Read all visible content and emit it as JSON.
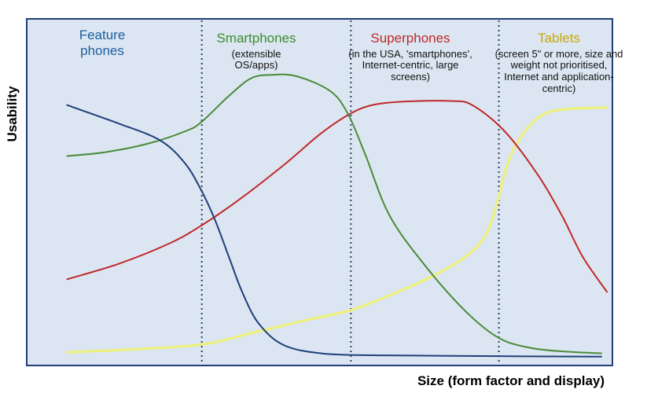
{
  "chart_data": {
    "type": "line",
    "title": "",
    "xlabel": "Size (form factor and display)",
    "ylabel": "Usability",
    "xlim": [
      0,
      100
    ],
    "ylim": [
      0,
      100
    ],
    "grid": false,
    "background": "#dce6f2",
    "frame_color": "#1f3f7a",
    "divider_color": "#2f3f5f",
    "dividers_x": [
      27.9,
      54.8,
      81.5
    ],
    "categories": [
      {
        "title": "Feature phones",
        "description": "",
        "color": "#1f5fa0"
      },
      {
        "title": "Smartphones",
        "description": "(extensible OS/apps)",
        "color": "#3d8a2c"
      },
      {
        "title": "Superphones",
        "description": "(in the USA, 'smartphones', Internet-centric, large screens)",
        "color": "#c0282a"
      },
      {
        "title": "Tablets",
        "description": "(screen 5\" or more, size and weight not prioritised, Internet and application-centric)",
        "color": "#c8a800"
      }
    ],
    "series": [
      {
        "name": "Feature phones",
        "color": "#1f3f7a",
        "points": [
          [
            3.6,
            76.0
          ],
          [
            13.0,
            70.5
          ],
          [
            20.4,
            65.6
          ],
          [
            24.9,
            58.8
          ],
          [
            27.9,
            50.6
          ],
          [
            30.3,
            42.1
          ],
          [
            32.9,
            30.8
          ],
          [
            35.3,
            20.5
          ],
          [
            38.2,
            11.6
          ],
          [
            42.7,
            5.3
          ],
          [
            49.8,
            2.8
          ],
          [
            60.0,
            2.3
          ],
          [
            75.0,
            2.1
          ],
          [
            100.0,
            1.9
          ]
        ]
      },
      {
        "name": "Smartphones",
        "color": "#4a8a3a",
        "points": [
          [
            3.6,
            61.0
          ],
          [
            10.4,
            62.1
          ],
          [
            18.1,
            64.6
          ],
          [
            25.1,
            68.4
          ],
          [
            27.9,
            71.1
          ],
          [
            32.6,
            78.4
          ],
          [
            36.8,
            83.9
          ],
          [
            40.6,
            84.9
          ],
          [
            45.0,
            84.5
          ],
          [
            51.1,
            80.1
          ],
          [
            54.3,
            73.3
          ],
          [
            57.4,
            61.4
          ],
          [
            61.8,
            43.4
          ],
          [
            68.4,
            28.3
          ],
          [
            75.6,
            15.1
          ],
          [
            81.5,
            7.4
          ],
          [
            87.2,
            4.5
          ],
          [
            93.5,
            3.4
          ],
          [
            100.0,
            2.9
          ]
        ]
      },
      {
        "name": "Superphones",
        "color": "#c0282a",
        "points": [
          [
            3.6,
            24.7
          ],
          [
            12.8,
            29.2
          ],
          [
            22.0,
            35.2
          ],
          [
            27.9,
            40.6
          ],
          [
            35.1,
            48.7
          ],
          [
            43.1,
            58.9
          ],
          [
            49.2,
            67.4
          ],
          [
            54.3,
            73.1
          ],
          [
            58.4,
            75.9
          ],
          [
            64.0,
            77.0
          ],
          [
            72.9,
            77.2
          ],
          [
            76.8,
            75.9
          ],
          [
            82.6,
            68.2
          ],
          [
            88.6,
            55.3
          ],
          [
            92.9,
            43.4
          ],
          [
            96.6,
            31.4
          ],
          [
            101.0,
            21.0
          ]
        ]
      },
      {
        "name": "Tablets",
        "color": "#eef07a",
        "points": [
          [
            3.6,
            3.2
          ],
          [
            14.7,
            4.0
          ],
          [
            27.9,
            5.5
          ],
          [
            37.0,
            8.9
          ],
          [
            46.5,
            12.6
          ],
          [
            54.8,
            15.6
          ],
          [
            61.8,
            20.0
          ],
          [
            68.4,
            24.7
          ],
          [
            74.5,
            30.2
          ],
          [
            78.6,
            36.4
          ],
          [
            80.8,
            44.9
          ],
          [
            82.9,
            57.8
          ],
          [
            85.2,
            66.0
          ],
          [
            88.8,
            72.5
          ],
          [
            92.9,
            74.7
          ],
          [
            101.0,
            75.3
          ]
        ]
      }
    ]
  }
}
